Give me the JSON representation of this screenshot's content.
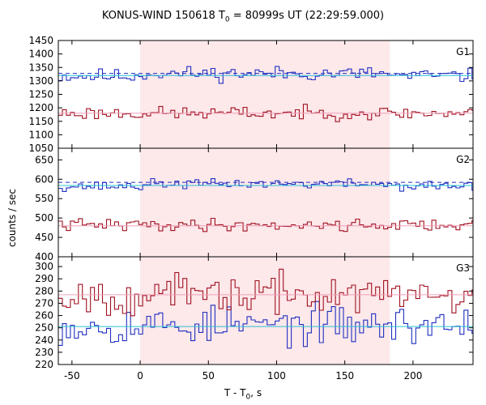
{
  "chart_data": {
    "type": "line",
    "title": {
      "main": "KONUS-WIND 150618 T",
      "sub": "0",
      "rest": " = 80999s UT (22:29:59.000)"
    },
    "ylabel": "counts / sec",
    "xlabel": {
      "main": "T - T",
      "sub": "0",
      "rest": ", s"
    },
    "xlim": [
      -60,
      244
    ],
    "x_ticks": [
      -50,
      0,
      50,
      100,
      150,
      200
    ],
    "highlight_interval": [
      0,
      183
    ],
    "bin_width": 2.944,
    "panels": [
      {
        "name": "G1",
        "ylim": [
          1050,
          1450
        ],
        "y_ticks": [
          1050,
          1100,
          1150,
          1200,
          1250,
          1300,
          1350,
          1400,
          1450
        ],
        "series": [
          {
            "color": "#1f2fbf",
            "mean": 1318,
            "amp": 22,
            "pulse": 18,
            "fit_dashed": 1328,
            "seed": 11
          },
          {
            "color": "#a01020",
            "mean": 1180,
            "amp": 20,
            "pulse": 0,
            "seed": 23
          }
        ],
        "fits": [
          {
            "value": 1320,
            "color": "#2ac0d8"
          },
          {
            "value": 1180,
            "color": "#f0a0b8"
          }
        ]
      },
      {
        "name": "G2",
        "ylim": [
          400,
          680
        ],
        "y_ticks": [
          400,
          450,
          500,
          550,
          600,
          650
        ],
        "series": [
          {
            "color": "#1f2fbf",
            "mean": 582,
            "amp": 10,
            "pulse": 12,
            "fit_dashed": 592,
            "seed": 37
          },
          {
            "color": "#a01020",
            "mean": 482,
            "amp": 13,
            "pulse": 0,
            "seed": 41
          }
        ],
        "fits": [
          {
            "value": 584,
            "color": "#2ac0d8"
          },
          {
            "value": 480,
            "color": "#f0a0b8"
          }
        ]
      },
      {
        "name": "G3",
        "ylim": [
          220,
          308
        ],
        "y_ticks": [
          220,
          230,
          240,
          250,
          260,
          270,
          280,
          290,
          300
        ],
        "series": [
          {
            "color": "#1f2fbf",
            "mean": 252,
            "amp": 13,
            "pulse": 0,
            "seed": 53
          },
          {
            "color": "#a01020",
            "mean": 277,
            "amp": 13,
            "pulse": 0,
            "seed": 67
          }
        ],
        "fits": [
          {
            "value": 251,
            "color": "#2ac0d8"
          },
          {
            "value": 277,
            "color": "#f0a0b8"
          }
        ]
      }
    ],
    "colors": {
      "highlight": "#fde8ea",
      "axis": "#000000"
    }
  }
}
